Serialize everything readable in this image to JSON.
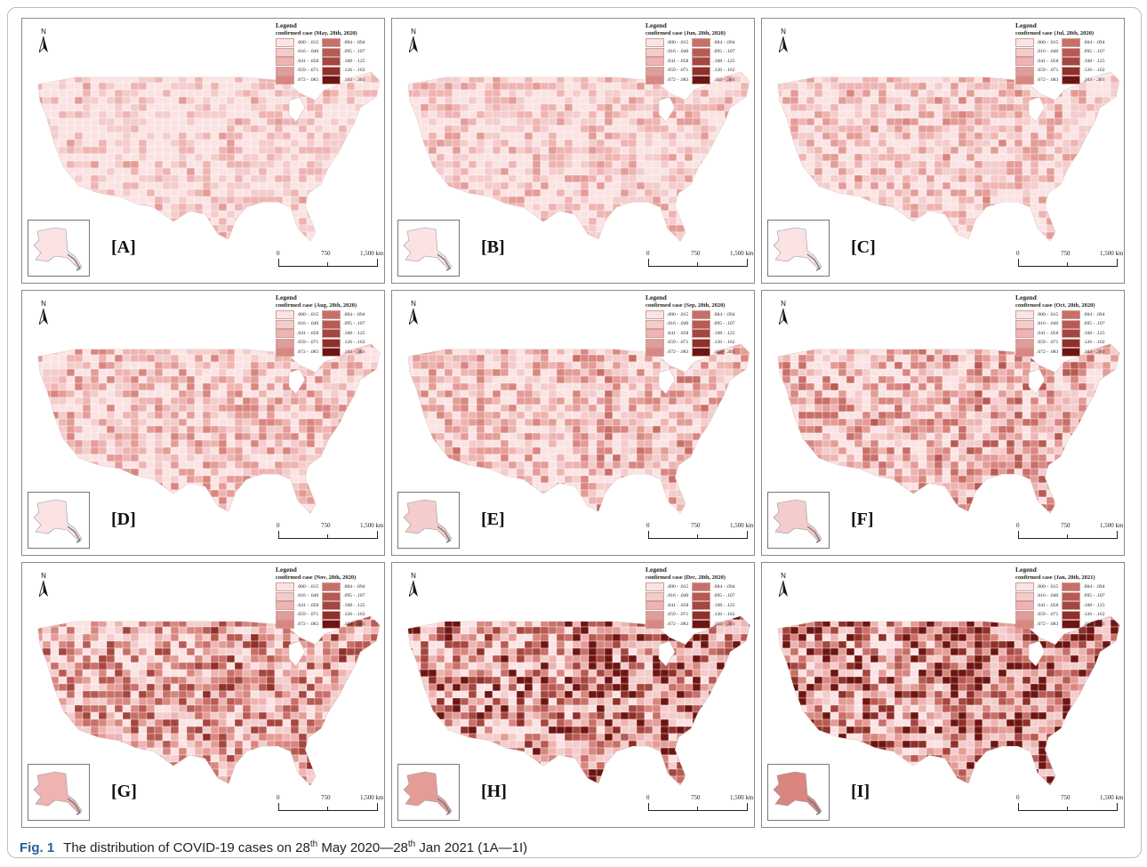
{
  "figure": {
    "caption": {
      "label": "Fig. 1",
      "p1": "The distribution of COVID-19 cases on 28",
      "sup1": "th",
      "p2": " May 2020—28",
      "sup2": "th",
      "p3": " Jan 2021 (1A—1I)"
    }
  },
  "legend": {
    "title": "Legend",
    "classes": [
      ".000 - .015",
      ".016 - .040",
      ".041 - .058",
      ".059 - .071",
      ".072 - .083",
      ".084 - .094",
      ".095 - .107",
      ".108 - .125",
      ".126 - .162",
      ".163 - .301"
    ],
    "colors": [
      "#fbe3e3",
      "#f4cccc",
      "#eeb4b1",
      "#e49c97",
      "#d98680",
      "#c96f68",
      "#b85a53",
      "#a5463f",
      "#8f3029",
      "#6e1512"
    ]
  },
  "map_common": {
    "north_label": "N",
    "scale_labels": [
      "0",
      "750",
      "1,500 km"
    ],
    "inset_name": "alaska-inset"
  },
  "panels": [
    {
      "label": "[A]",
      "subtitle": "confirmed case (May, 28th, 2020)",
      "intensity": 0.05
    },
    {
      "label": "[B]",
      "subtitle": "confirmed case (Jun, 28th, 2020)",
      "intensity": 0.08
    },
    {
      "label": "[C]",
      "subtitle": "confirmed case (Jul, 28th, 2020)",
      "intensity": 0.12
    },
    {
      "label": "[D]",
      "subtitle": "confirmed case (Aug, 28th, 2020)",
      "intensity": 0.16
    },
    {
      "label": "[E]",
      "subtitle": "confirmed case (Sep, 28th, 2020)",
      "intensity": 0.2
    },
    {
      "label": "[F]",
      "subtitle": "confirmed case (Oct, 28th, 2020)",
      "intensity": 0.28
    },
    {
      "label": "[G]",
      "subtitle": "confirmed case (Nov, 28th, 2020)",
      "intensity": 0.42
    },
    {
      "label": "[H]",
      "subtitle": "confirmed case (Dec, 28th, 2020)",
      "intensity": 0.62
    },
    {
      "label": "[I]",
      "subtitle": "confirmed case (Jan, 28th, 2021)",
      "intensity": 0.8
    }
  ]
}
